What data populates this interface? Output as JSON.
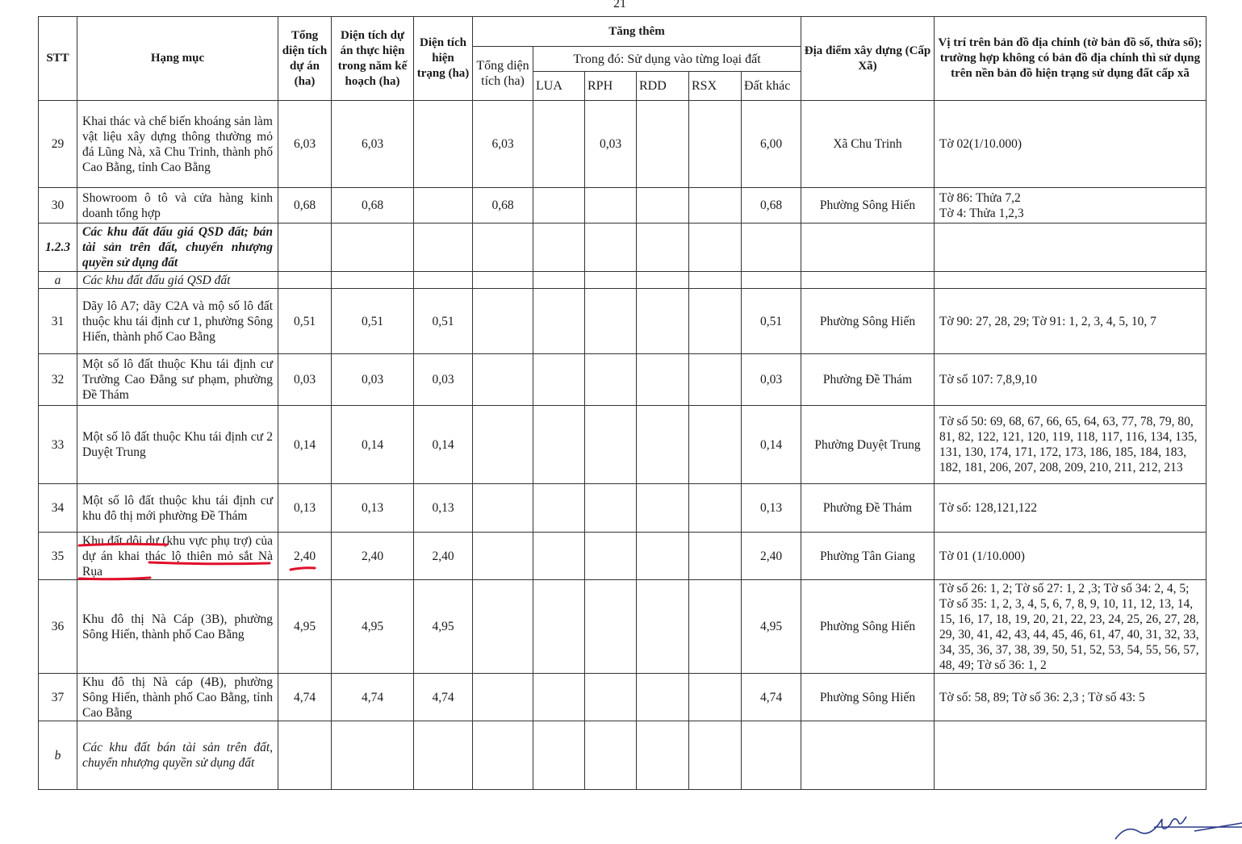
{
  "page_number": "21",
  "headers": {
    "stt": "STT",
    "hang_muc": "Hạng mục",
    "tong_dien_tich": "Tổng diện tích dự án (ha)",
    "dien_tich_thuc_hien": "Diện tích dự án thực hiện trong năm kế hoạch (ha)",
    "dien_tich_hien_trang": "Diện tích hiện trạng (ha)",
    "tang_them": "Tăng thêm",
    "tong_dien_tich_tang": "Tổng diện tích (ha)",
    "trong_do": "Trong đó: Sử dụng vào từng loại đất",
    "lua": "LUA",
    "rph": "RPH",
    "rdd": "RDD",
    "rsx": "RSX",
    "dat_khac": "Đất khác",
    "dia_diem": "Địa điểm xây dựng (Cấp Xã)",
    "vi_tri": "Vị trí trên bản đồ địa chính (tờ bản đồ số, thửa số); trường hợp không có bản đồ địa chính thì sử dụng trên nền bản đồ hiện trạng sử dụng đất cấp xã"
  },
  "rows": [
    {
      "stt": "29",
      "hang_muc": "Khai thác và chế biến khoáng sản làm vật liệu xây dựng thông thường mỏ đá Lũng Nà, xã Chu Trinh, thành phố Cao Bằng, tỉnh Cao Bằng",
      "tong": "6,03",
      "thuc_hien": "6,03",
      "hien_trang": "",
      "tang": "6,03",
      "lua": "",
      "rph": "0,03",
      "rdd": "",
      "rsx": "",
      "khac": "6,00",
      "dia_diem": "Xã Chu Trinh",
      "vi_tri": "Tờ 02(1/10.000)"
    },
    {
      "stt": "30",
      "hang_muc": "Showroom ô tô và cửa hàng kinh doanh tổng hợp",
      "tong": "0,68",
      "thuc_hien": "0,68",
      "hien_trang": "",
      "tang": "0,68",
      "lua": "",
      "rph": "",
      "rdd": "",
      "rsx": "",
      "khac": "0,68",
      "dia_diem": "Phường Sông Hiến",
      "vi_tri": "Tờ 86: Thửa 7,2\nTờ 4: Thửa 1,2,3"
    },
    {
      "stt": "1.2.3",
      "hang_muc": "Các khu đất đấu giá QSD đất; bán tài sản trên đất, chuyển nhượng quyền sử dụng đất",
      "style": "bi"
    },
    {
      "stt": "a",
      "hang_muc": "Các khu đất đấu giá QSD đất",
      "style": "i"
    },
    {
      "stt": "31",
      "hang_muc": "Dãy lô A7; dãy C2A và mộ số lô đất thuộc khu tái định cư 1, phường Sông Hiến, thành phố Cao Bằng",
      "tong": "0,51",
      "thuc_hien": "0,51",
      "hien_trang": "0,51",
      "tang": "",
      "lua": "",
      "rph": "",
      "rdd": "",
      "rsx": "",
      "khac": "0,51",
      "dia_diem": "Phường Sông Hiến",
      "vi_tri": "Tờ 90: 27, 28, 29; Tờ 91: 1, 2, 3, 4, 5, 10, 7"
    },
    {
      "stt": "32",
      "hang_muc": "Một số lô đất thuộc Khu tái định cư Trường Cao Đẳng sư phạm, phường Đề Thám",
      "tong": "0,03",
      "thuc_hien": "0,03",
      "hien_trang": "0,03",
      "tang": "",
      "lua": "",
      "rph": "",
      "rdd": "",
      "rsx": "",
      "khac": "0,03",
      "dia_diem": "Phường Đề Thám",
      "vi_tri": "Tờ số 107: 7,8,9,10"
    },
    {
      "stt": "33",
      "hang_muc": "Một số lô đất thuộc Khu tái định cư 2 Duyệt Trung",
      "tong": "0,14",
      "thuc_hien": "0,14",
      "hien_trang": "0,14",
      "tang": "",
      "lua": "",
      "rph": "",
      "rdd": "",
      "rsx": "",
      "khac": "0,14",
      "dia_diem": "Phường Duyệt Trung",
      "vi_tri": "Tờ số 50: 69, 68, 67, 66, 65, 64, 63, 77, 78, 79, 80, 81, 82, 122, 121, 120, 119, 118, 117, 116, 134, 135, 131, 130, 174, 171, 172, 173, 186, 185, 184, 183, 182, 181, 206, 207, 208, 209, 210, 211, 212, 213"
    },
    {
      "stt": "34",
      "hang_muc": "Một số lô đất thuộc khu tái định cư khu đô thị mới phường Đề Thám",
      "tong": "0,13",
      "thuc_hien": "0,13",
      "hien_trang": "0,13",
      "tang": "",
      "lua": "",
      "rph": "",
      "rdd": "",
      "rsx": "",
      "khac": "0,13",
      "dia_diem": "Phường Đề Thám",
      "vi_tri": "Tờ số: 128,121,122"
    },
    {
      "stt": "35",
      "hang_muc": "Khu đất dôi dư (khu vực phụ trợ) của dự án khai thác lộ thiên mỏ sắt Nà Rụa",
      "tong": "2,40",
      "thuc_hien": "2,40",
      "hien_trang": "2,40",
      "tang": "",
      "lua": "",
      "rph": "",
      "rdd": "",
      "rsx": "",
      "khac": "2,40",
      "dia_diem": "Phường Tân Giang",
      "vi_tri": "Tờ 01 (1/10.000)"
    },
    {
      "stt": "36",
      "hang_muc": "Khu đô thị Nà Cáp (3B), phường Sông Hiến, thành phố Cao Bằng",
      "tong": "4,95",
      "thuc_hien": "4,95",
      "hien_trang": "4,95",
      "tang": "",
      "lua": "",
      "rph": "",
      "rdd": "",
      "rsx": "",
      "khac": "4,95",
      "dia_diem": "Phường Sông Hiến",
      "vi_tri": "Tờ số 26: 1, 2; Tờ số 27: 1, 2 ,3; Tờ số 34: 2, 4, 5; Tờ số 35: 1, 2, 3, 4, 5, 6, 7, 8, 9, 10, 11, 12, 13, 14, 15, 16, 17, 18, 19, 20, 21, 22, 23, 24, 25, 26, 27, 28, 29, 30, 41, 42, 43, 44, 45, 46, 61, 47, 40, 31, 32, 33, 34, 35, 36, 37, 38, 39, 50, 51, 52, 53, 54, 55, 56, 57, 48, 49; Tờ số 36: 1, 2"
    },
    {
      "stt": "37",
      "hang_muc": "Khu đô thị Nà cáp (4B), phường Sông Hiến, thành phố Cao Bằng, tỉnh Cao Bằng",
      "tong": "4,74",
      "thuc_hien": "4,74",
      "hien_trang": "4,74",
      "tang": "",
      "lua": "",
      "rph": "",
      "rdd": "",
      "rsx": "",
      "khac": "4,74",
      "dia_diem": "Phường Sông Hiến",
      "vi_tri": "Tờ số: 58, 89; Tờ số 36: 2,3 ; Tờ số 43: 5"
    },
    {
      "stt": "b",
      "hang_muc": "Các khu đất bán tài sản trên đất, chuyển nhượng quyền sử dụng đất",
      "style": "i"
    }
  ],
  "annotation_color": "#e0102a",
  "signature": "handwritten signature"
}
